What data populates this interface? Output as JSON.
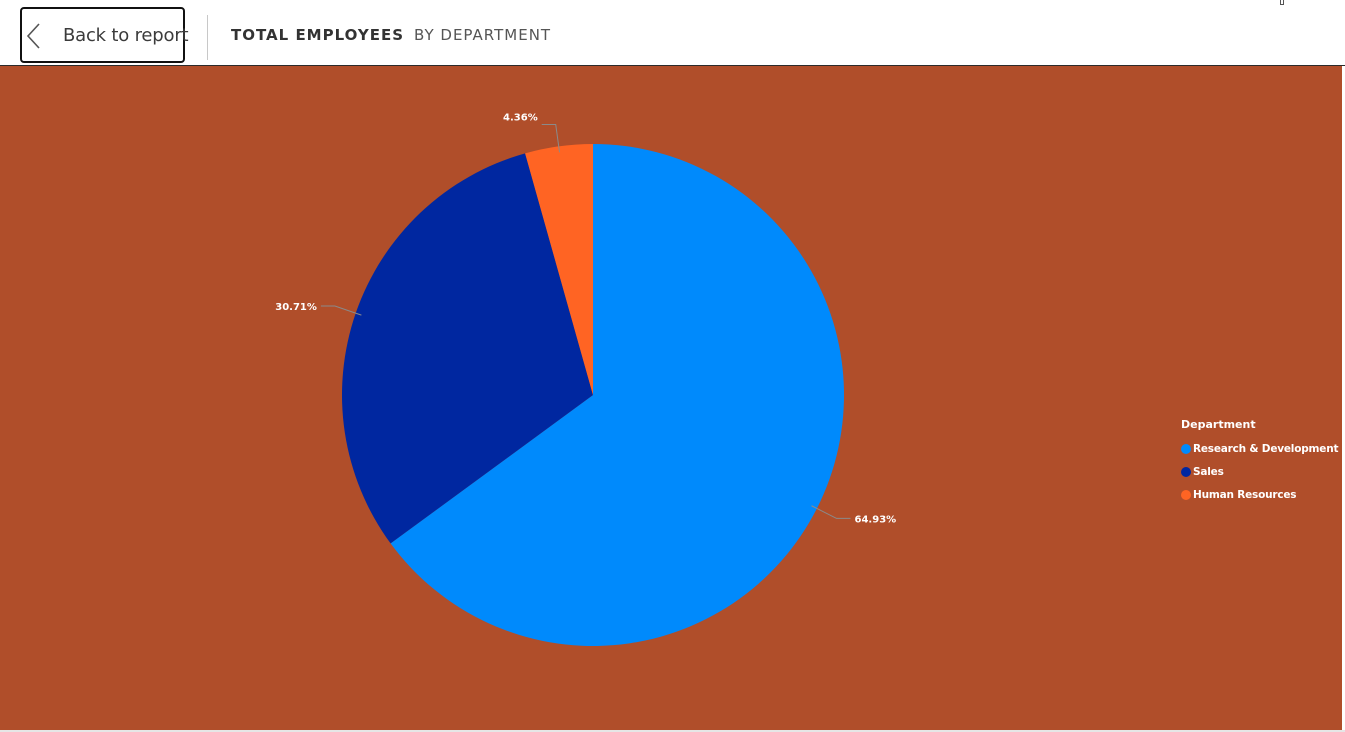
{
  "header": {
    "back_label": "Back to report",
    "breadcrumb": {
      "primary": "TOTAL EMPLOYEES",
      "secondary": "BY DEPARTMENT"
    }
  },
  "colors": {
    "canvas_background": "#b04e2a",
    "research_development": "#008afc",
    "sales": "#0027a0",
    "human_resources": "#ff6423"
  },
  "icons": {
    "back": "chevron-left-icon"
  },
  "chart_data": {
    "type": "pie",
    "title": "",
    "legend_title": "Department",
    "legend_position": "right",
    "series": [
      {
        "name": "Research & Development",
        "value": 64.93,
        "label": "64.93%",
        "color": "#008afc"
      },
      {
        "name": "Sales",
        "value": 30.71,
        "label": "30.71%",
        "color": "#0027a0"
      },
      {
        "name": "Human Resources",
        "value": 4.36,
        "label": "4.36%",
        "color": "#ff6423"
      }
    ]
  }
}
